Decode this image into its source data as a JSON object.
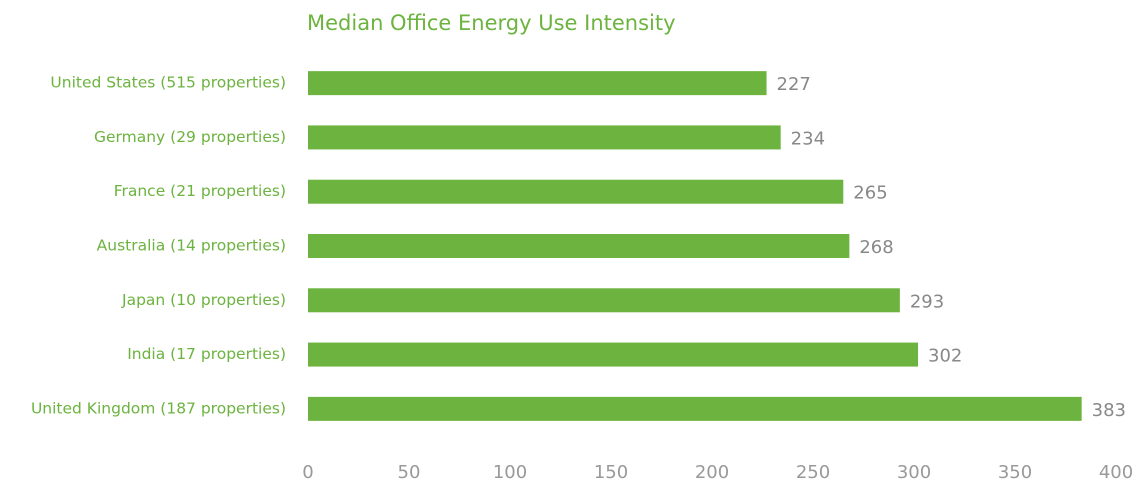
{
  "chart_data": {
    "type": "bar",
    "orientation": "horizontal",
    "title": "Median Office Energy Use Intensity",
    "categories": [
      "United States (515 properties)",
      "Germany (29 properties)",
      "France (21 properties)",
      "Australia (14 properties)",
      "Japan (10 properties)",
      "India (17 properties)",
      "United Kingdom (187 properties)"
    ],
    "values": [
      227,
      234,
      265,
      268,
      293,
      302,
      383
    ],
    "color": "#6cb33f",
    "xlim": [
      0,
      400
    ],
    "xticks": [
      0,
      50,
      100,
      150,
      200,
      250,
      300,
      350,
      400
    ],
    "grid": false
  }
}
